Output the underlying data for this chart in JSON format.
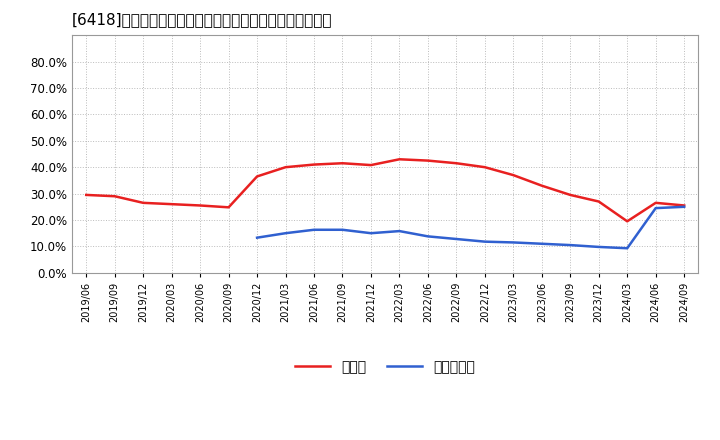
{
  "title": "[6418]　現預金、有利子負債の総資産に対する比率の推移",
  "x_labels": [
    "2019/06",
    "2019/09",
    "2019/12",
    "2020/03",
    "2020/06",
    "2020/09",
    "2020/12",
    "2021/03",
    "2021/06",
    "2021/09",
    "2021/12",
    "2022/03",
    "2022/06",
    "2022/09",
    "2022/12",
    "2023/03",
    "2023/06",
    "2023/09",
    "2023/12",
    "2024/03",
    "2024/06",
    "2024/09"
  ],
  "cash_ratio": [
    0.295,
    0.29,
    0.265,
    0.26,
    0.255,
    0.248,
    0.365,
    0.4,
    0.41,
    0.415,
    0.408,
    0.43,
    0.425,
    0.415,
    0.4,
    0.37,
    0.33,
    0.295,
    0.27,
    0.195,
    0.265,
    0.255
  ],
  "debt_ratio": [
    null,
    null,
    null,
    null,
    null,
    null,
    0.133,
    0.15,
    0.163,
    0.163,
    0.15,
    0.158,
    0.138,
    0.128,
    0.118,
    0.115,
    0.11,
    0.105,
    0.098,
    0.093,
    0.245,
    0.25
  ],
  "cash_color": "#e82020",
  "debt_color": "#3060d0",
  "background_color": "#ffffff",
  "plot_bg_color": "#ffffff",
  "grid_color": "#aaaaaa",
  "ylim": [
    0.0,
    0.9
  ],
  "yticks": [
    0.0,
    0.1,
    0.2,
    0.3,
    0.4,
    0.5,
    0.6,
    0.7,
    0.8
  ],
  "legend_cash": "現預金",
  "legend_debt": "有利子負債"
}
